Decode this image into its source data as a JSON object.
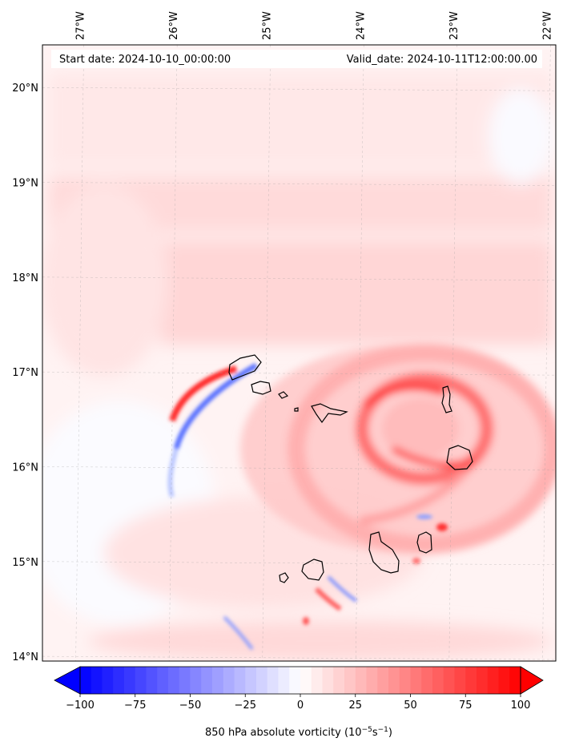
{
  "header": {
    "start_date": "Start date: 2024-10-10_00:00:00",
    "valid_date": "Valid_date: 2024-10-11T12:00:00.00"
  },
  "axes": {
    "lon_labels": [
      "27°W",
      "26°W",
      "25°W",
      "24°W",
      "23°W",
      "22°W"
    ],
    "lat_labels": [
      "20°N",
      "19°N",
      "18°N",
      "17°N",
      "16°N",
      "15°N",
      "14°N"
    ],
    "lon_values": [
      -27,
      -26,
      -25,
      -24,
      -23,
      -22
    ],
    "lat_values": [
      20,
      19,
      18,
      17,
      16,
      15,
      14
    ],
    "lon_range": [
      -27.4,
      -21.9
    ],
    "lat_range": [
      13.95,
      20.45
    ]
  },
  "colorbar": {
    "label_prefix": "850 hPa absolute vorticity (10",
    "label_exp1": "−5",
    "label_mid": "s",
    "label_exp2": "−1",
    "label_suffix": ")",
    "tick_labels": [
      "−100",
      "−75",
      "−50",
      "−25",
      "0",
      "25",
      "50",
      "75",
      "100"
    ],
    "tick_values": [
      -100,
      -75,
      -50,
      -25,
      0,
      25,
      50,
      75,
      100
    ],
    "range": [
      -100,
      100
    ],
    "extend": "both",
    "colormap": "bwr",
    "color_min": "#0000ff",
    "color_mid": "#ffffff",
    "color_max": "#ff0000"
  },
  "chart_data": {
    "type": "heatmap",
    "title": "",
    "variable": "850 hPa absolute vorticity",
    "xlabel": "",
    "ylabel": "",
    "xlim": [
      -27.4,
      -21.9
    ],
    "ylim": [
      13.95,
      20.45
    ],
    "grid": true,
    "vmin": -100,
    "vmax": 100,
    "features": [
      {
        "name": "cyclone-ring-east",
        "lon": -23.3,
        "lat": 16.3,
        "value": 70
      },
      {
        "name": "shear-band-positive",
        "lon": -25.9,
        "lat": 16.7,
        "value": 80
      },
      {
        "name": "shear-band-negative",
        "lon": -25.9,
        "lat": 16.5,
        "value": -60
      },
      {
        "name": "background-north",
        "lon": -24.5,
        "lat": 19.0,
        "value": 10
      },
      {
        "name": "background-south-west",
        "lon": -26.5,
        "lat": 15.0,
        "value": -5
      }
    ]
  }
}
